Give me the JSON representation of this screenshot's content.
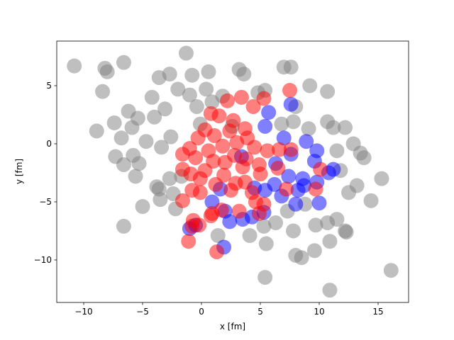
{
  "chart_data": {
    "type": "scatter",
    "x_label": "x [fm]",
    "y_label": "y [fm]",
    "xlim": [
      -12.29,
      17.59
    ],
    "ylim": [
      -13.66,
      8.84
    ],
    "xticks": [
      {
        "value": -10,
        "label": "−10"
      },
      {
        "value": -5,
        "label": "−5"
      },
      0,
      5,
      10,
      15
    ],
    "yticks": [
      {
        "value": -10,
        "label": "−10"
      },
      {
        "value": -5,
        "label": "−5"
      },
      0,
      5
    ],
    "series": [
      {
        "color": "gray",
        "x": [
          -10.8,
          -8.2,
          -8,
          -6.6,
          -1.3,
          -8.4,
          -3.6,
          -2.7,
          -0.8,
          0.6,
          3.2,
          3.6,
          7,
          7.6,
          9.2,
          10.7,
          5.4,
          4.8,
          -4.2,
          -2,
          -1,
          0.4,
          -6.2,
          -5.4,
          -4,
          -3.1,
          -7.4,
          -6.8,
          -8.9,
          -5.9,
          -4.7,
          -3.4,
          -2.6,
          -7.3,
          -5.8,
          -5.3,
          -6.6,
          -5.6,
          -3.8,
          -3.6,
          -2.7,
          -2.4,
          -3.5,
          -5,
          -2.2,
          -6.6,
          -1.7,
          10.7,
          11.2,
          12.2,
          13.5,
          13.8,
          12.9,
          11.5,
          11.8,
          12.5,
          13.2,
          14.4,
          15.3,
          16.1,
          12.2,
          12.3,
          11.5,
          10.7,
          10.9,
          9.6,
          8.5,
          8,
          7.8,
          6.3,
          5.3,
          5.5,
          4.1,
          1.4,
          5.4,
          10.9,
          9.7,
          8.8,
          7.3,
          9.1,
          7.8,
          6.8,
          8,
          1.8,
          0.9,
          -0.4,
          2.6,
          -0.1
        ],
        "values": [
          6.7,
          6.5,
          6.2,
          7.0,
          7.8,
          4.5,
          5.7,
          6.0,
          5.9,
          6.2,
          6.4,
          6.0,
          6.6,
          6.6,
          5.0,
          4.5,
          4.6,
          4.4,
          4.0,
          4.7,
          4.2,
          4.7,
          2.8,
          2.2,
          2.3,
          3.0,
          1.8,
          0.5,
          1.1,
          1.4,
          0.2,
          -0.3,
          0.6,
          -1.1,
          -1.0,
          -1.7,
          -1.8,
          -2.8,
          -3.7,
          -3.9,
          -3.0,
          -4.3,
          -4.8,
          -5.4,
          -5.6,
          -7.1,
          -2.8,
          1.9,
          1.4,
          1.4,
          -0.8,
          -1.2,
          0.0,
          -0.6,
          -2.3,
          -4.2,
          -3.6,
          -4.9,
          -3.0,
          -10.9,
          -7.5,
          -7.6,
          -6.5,
          -6.8,
          -8.4,
          -9.2,
          -9.8,
          -9.6,
          -7.5,
          -6.8,
          -7.1,
          -8.6,
          -7.9,
          -7.9,
          -11.5,
          -12.6,
          -7.0,
          -5.2,
          -5.8,
          1.3,
          1.9,
          1.7,
          3.2,
          4.1,
          3.6,
          3.2,
          1.5,
          1.7
        ]
      },
      {
        "color": "blue",
        "x": [
          7.6,
          5.7,
          5.4,
          7,
          8.9,
          9.8,
          10.8,
          9.8,
          8.7,
          8.2,
          8.6,
          7.4,
          6.2,
          5.4,
          4.5,
          6.8,
          8.0,
          10.0,
          5.3,
          4.3,
          2.4,
          3.5,
          2.0,
          1.9,
          -1.0,
          -0.5,
          0.9,
          3.4,
          6.3,
          7.6,
          9.6,
          11.2,
          1.6
        ],
        "values": [
          3.4,
          2.7,
          1.5,
          0.5,
          0.2,
          -0.6,
          -2.5,
          -3.3,
          -3.6,
          -4.0,
          -3.0,
          -2.8,
          -3.5,
          -4.0,
          -3.8,
          -4.5,
          -5.2,
          -5.1,
          -5.9,
          -6.3,
          -6.7,
          -6.5,
          -5.8,
          -8.9,
          -7.3,
          -7.0,
          -5.0,
          -1.1,
          -1.7,
          -0.9,
          -1.5,
          -2.2,
          -3.9
        ]
      },
      {
        "color": "red",
        "x": [
          7.5,
          5.3,
          4.4,
          3.4,
          2.2,
          0.8,
          1.5,
          2.7,
          3.7,
          0.3,
          1.1,
          -1.0,
          -1.6,
          -0.5,
          0.6,
          1.8,
          3.0,
          4.5,
          5.6,
          6.6,
          7.6,
          4.9,
          3.5,
          2.0,
          0.3,
          -0.9,
          -0.8,
          -0.1,
          1.2,
          2.5,
          3.7,
          5.0,
          6.5,
          10.1,
          7.2,
          9.7,
          4.6,
          5.3,
          4.9,
          3.2,
          1.7,
          0.8,
          0.9,
          -0.7,
          -0.8,
          -0.2,
          -1.1,
          1.3,
          -1.6,
          -1.6,
          -0.1,
          1.9,
          2.8,
          3.8,
          4.3,
          2.9,
          1.0,
          -0.3,
          2.4,
          3.9
        ],
        "values": [
          4.6,
          3.9,
          3.2,
          4.0,
          3.7,
          2.6,
          2.4,
          2.0,
          1.3,
          1.2,
          0.7,
          -0.4,
          -0.9,
          -1.2,
          -0.6,
          -0.2,
          0.1,
          -0.3,
          -0.6,
          -0.5,
          -0.5,
          -1.8,
          -2.0,
          -1.6,
          -2.3,
          -2.6,
          -4.0,
          -4.2,
          -3.5,
          -4.0,
          -3.3,
          -2.6,
          -2.1,
          -2.2,
          -3.9,
          -3.9,
          -5.0,
          -5.2,
          -6.0,
          -5.8,
          -5.7,
          -6.2,
          -6.0,
          -6.6,
          -7.1,
          -7.0,
          -8.4,
          -9.3,
          -4.9,
          -2.2,
          -3.0,
          -2.7,
          -1.0,
          -1.3,
          -4.2,
          -3.4,
          -1.5,
          0.5,
          1.1,
          0.5
        ]
      }
    ]
  }
}
